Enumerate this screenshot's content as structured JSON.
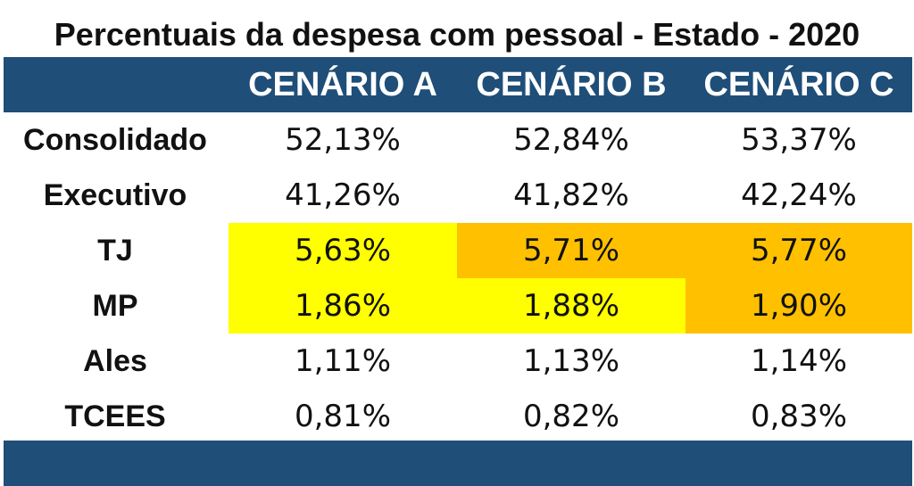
{
  "chart_data": {
    "type": "table",
    "title": "Percentuais da despesa com pessoal - Estado - 2020",
    "columns": [
      "CENÁRIO A",
      "CENÁRIO B",
      "CENÁRIO C"
    ],
    "rows": [
      {
        "label": "Consolidado",
        "values": [
          "52,13%",
          "52,84%",
          "53,37%"
        ],
        "highlights": [
          null,
          null,
          null
        ]
      },
      {
        "label": "Executivo",
        "values": [
          "41,26%",
          "41,82%",
          "42,24%"
        ],
        "highlights": [
          null,
          null,
          null
        ]
      },
      {
        "label": "TJ",
        "values": [
          "5,63%",
          "5,71%",
          "5,77%"
        ],
        "highlights": [
          "#ffff00",
          "#ffc000",
          "#ffc000"
        ]
      },
      {
        "label": "MP",
        "values": [
          "1,86%",
          "1,88%",
          "1,90%"
        ],
        "highlights": [
          "#ffff00",
          "#ffff00",
          "#ffc000"
        ]
      },
      {
        "label": "Ales",
        "values": [
          "1,11%",
          "1,13%",
          "1,14%"
        ],
        "highlights": [
          null,
          null,
          null
        ]
      },
      {
        "label": "TCEES",
        "values": [
          "0,81%",
          "0,82%",
          "0,83%"
        ],
        "highlights": [
          null,
          null,
          null
        ]
      }
    ],
    "colors": {
      "header_band": "#1f4e79",
      "yellow": "#ffff00",
      "orange": "#ffc000"
    }
  }
}
